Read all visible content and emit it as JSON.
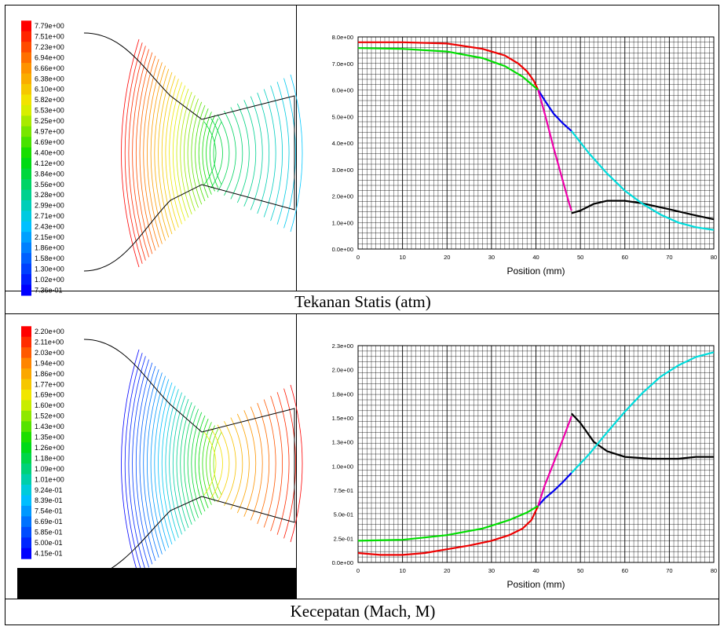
{
  "top_caption": "Tekanan Statis (atm)",
  "bottom_caption": "Kecepatan (Mach, M)",
  "top_colorbar": {
    "labels": [
      "7.79e+00",
      "7.51e+00",
      "7.23e+00",
      "6.94e+00",
      "6.66e+00",
      "6.38e+00",
      "6.10e+00",
      "5.82e+00",
      "5.53e+00",
      "5.25e+00",
      "4.97e+00",
      "4.69e+00",
      "4.40e+00",
      "4.12e+00",
      "3.84e+00",
      "3.56e+00",
      "3.28e+00",
      "2.99e+00",
      "2.71e+00",
      "2.43e+00",
      "2.15e+00",
      "1.86e+00",
      "1.58e+00",
      "1.30e+00",
      "1.02e+00",
      "7.36e-01"
    ]
  },
  "bottom_colorbar": {
    "labels": [
      "2.20e+00",
      "2.11e+00",
      "2.03e+00",
      "1.94e+00",
      "1.86e+00",
      "1.77e+00",
      "1.69e+00",
      "1.60e+00",
      "1.52e+00",
      "1.43e+00",
      "1.35e+00",
      "1.26e+00",
      "1.18e+00",
      "1.09e+00",
      "1.01e+00",
      "9.24e-01",
      "8.39e-01",
      "7.54e-01",
      "6.69e-01",
      "5.85e-01",
      "5.00e-01",
      "4.15e-01"
    ]
  },
  "chart_data": [
    {
      "type": "line",
      "xlabel": "Position (mm)",
      "ylabel": "",
      "xlim": [
        0,
        80
      ],
      "ylim": [
        0,
        8
      ],
      "x_ticks": [
        "0",
        "10",
        "20",
        "30",
        "40",
        "50",
        "60",
        "70",
        "80"
      ],
      "y_ticks": [
        "0.0e+00",
        "1.0e+00",
        "2.0e+00",
        "3.0e+00",
        "4.0e+00",
        "5.0e+00",
        "6.0e+00",
        "7.0e+00",
        "8.0e+00"
      ],
      "grid": true,
      "series": [
        {
          "color": "#ee0000",
          "points": [
            [
              0,
              7.8
            ],
            [
              10,
              7.8
            ],
            [
              20,
              7.75
            ],
            [
              28,
              7.55
            ],
            [
              33,
              7.3
            ],
            [
              36,
              7.0
            ],
            [
              38,
              6.7
            ],
            [
              39.5,
              6.35
            ],
            [
              40.5,
              6.0
            ]
          ]
        },
        {
          "color": "#00dd00",
          "points": [
            [
              0,
              7.58
            ],
            [
              10,
              7.55
            ],
            [
              20,
              7.45
            ],
            [
              28,
              7.2
            ],
            [
              33,
              6.9
            ],
            [
              37,
              6.5
            ],
            [
              40.5,
              6.0
            ]
          ]
        },
        {
          "color": "#0000ee",
          "points": [
            [
              40.5,
              6.0
            ],
            [
              42,
              5.6
            ],
            [
              44,
              5.1
            ],
            [
              46,
              4.75
            ],
            [
              48,
              4.45
            ]
          ]
        },
        {
          "color": "#ee00aa",
          "points": [
            [
              40.5,
              6.0
            ],
            [
              42,
              5.1
            ],
            [
              44,
              3.8
            ],
            [
              46,
              2.6
            ],
            [
              47.5,
              1.7
            ],
            [
              48,
              1.45
            ]
          ]
        },
        {
          "color": "#000000",
          "points": [
            [
              48,
              1.35
            ],
            [
              50,
              1.45
            ],
            [
              53,
              1.7
            ],
            [
              56,
              1.82
            ],
            [
              60,
              1.82
            ],
            [
              64,
              1.72
            ],
            [
              70,
              1.5
            ],
            [
              75,
              1.3
            ],
            [
              80,
              1.12
            ]
          ]
        },
        {
          "color": "#00dddd",
          "points": [
            [
              48,
              4.45
            ],
            [
              52,
              3.6
            ],
            [
              56,
              2.85
            ],
            [
              60,
              2.2
            ],
            [
              64,
              1.7
            ],
            [
              68,
              1.3
            ],
            [
              72,
              1.0
            ],
            [
              76,
              0.82
            ],
            [
              80,
              0.72
            ]
          ]
        }
      ]
    },
    {
      "type": "line",
      "xlabel": "Position (mm)",
      "ylabel": "",
      "xlim": [
        0,
        80
      ],
      "ylim": [
        0,
        2.3
      ],
      "x_ticks": [
        "0",
        "10",
        "20",
        "30",
        "40",
        "50",
        "60",
        "70",
        "80"
      ],
      "y_ticks": [
        "0.0e+00",
        "2.5e-01",
        "5.0e-01",
        "7.5e-01",
        "1.0e+00",
        "1.3e+00",
        "1.5e+00",
        "1.8e+00",
        "2.0e+00",
        "2.3e+00"
      ],
      "grid": true,
      "series": [
        {
          "color": "#ee0000",
          "points": [
            [
              0,
              0.1
            ],
            [
              5,
              0.08
            ],
            [
              10,
              0.08
            ],
            [
              15,
              0.1
            ],
            [
              20,
              0.14
            ],
            [
              25,
              0.18
            ],
            [
              30,
              0.23
            ],
            [
              34,
              0.29
            ],
            [
              37,
              0.36
            ],
            [
              39,
              0.45
            ],
            [
              40.5,
              0.6
            ]
          ]
        },
        {
          "color": "#00dd00",
          "points": [
            [
              0,
              0.23
            ],
            [
              10,
              0.24
            ],
            [
              20,
              0.29
            ],
            [
              28,
              0.36
            ],
            [
              34,
              0.45
            ],
            [
              38,
              0.53
            ],
            [
              40.5,
              0.6
            ]
          ]
        },
        {
          "color": "#0000ee",
          "points": [
            [
              40.5,
              0.6
            ],
            [
              42,
              0.68
            ],
            [
              44,
              0.76
            ],
            [
              46,
              0.85
            ],
            [
              48,
              0.95
            ]
          ]
        },
        {
          "color": "#ee00aa",
          "points": [
            [
              40.5,
              0.6
            ],
            [
              42,
              0.82
            ],
            [
              44,
              1.06
            ],
            [
              46,
              1.3
            ],
            [
              48,
              1.55
            ]
          ]
        },
        {
          "color": "#000000",
          "points": [
            [
              48,
              1.58
            ],
            [
              50,
              1.48
            ],
            [
              53,
              1.28
            ],
            [
              56,
              1.18
            ],
            [
              60,
              1.12
            ],
            [
              66,
              1.1
            ],
            [
              72,
              1.1
            ],
            [
              76,
              1.12
            ],
            [
              80,
              1.12
            ]
          ]
        },
        {
          "color": "#00dddd",
          "points": [
            [
              48,
              0.95
            ],
            [
              52,
              1.15
            ],
            [
              56,
              1.38
            ],
            [
              60,
              1.6
            ],
            [
              64,
              1.8
            ],
            [
              68,
              1.97
            ],
            [
              72,
              2.09
            ],
            [
              76,
              2.18
            ],
            [
              80,
              2.23
            ]
          ]
        }
      ]
    }
  ]
}
